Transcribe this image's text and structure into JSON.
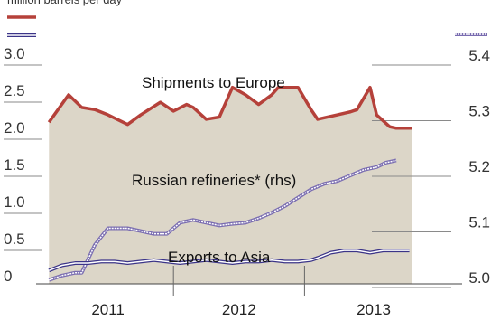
{
  "header": {
    "units": "million barrels per day"
  },
  "colors": {
    "europe": "#b5413a",
    "refineries": "#7a6db0",
    "asia": "#3b3488",
    "fill": "#dcd6c8",
    "grid": "#8a8a8a"
  },
  "chart_data": {
    "type": "area",
    "title": "",
    "ylabel": "million barrels per day",
    "ylim_left": [
      0,
      3.0
    ],
    "ylim_right": [
      5.0,
      5.4
    ],
    "left_ticks": [
      "0",
      "0.5",
      "1.0",
      "1.5",
      "2.0",
      "2.5",
      "3.0"
    ],
    "right_ticks": [
      "5.0",
      "5.1",
      "5.2",
      "5.3",
      "5.4"
    ],
    "years": [
      "2011",
      "2012",
      "2013"
    ],
    "grid": true,
    "series": [
      {
        "key": "europe",
        "style": "area-line",
        "axis": "left",
        "x": [
          2010.55,
          2010.7,
          2010.8,
          2010.9,
          2011.0,
          2011.15,
          2011.25,
          2011.4,
          2011.5,
          2011.6,
          2011.65,
          2011.75,
          2011.85,
          2011.95,
          2012.05,
          2012.15,
          2012.25,
          2012.3,
          2012.45,
          2012.55,
          2012.6,
          2012.75,
          2012.85,
          2012.9,
          2013.0,
          2013.05,
          2013.15,
          2013.2,
          2013.25,
          2013.32
        ],
        "y": [
          2.18,
          2.55,
          2.38,
          2.35,
          2.28,
          2.15,
          2.28,
          2.45,
          2.33,
          2.42,
          2.38,
          2.22,
          2.25,
          2.65,
          2.55,
          2.42,
          2.55,
          2.65,
          2.65,
          2.35,
          2.22,
          2.28,
          2.32,
          2.35,
          2.65,
          2.28,
          2.12,
          2.1,
          2.1,
          2.1
        ]
      },
      {
        "key": "refineries",
        "style": "hollow-line",
        "axis": "right",
        "x": [
          2010.55,
          2010.65,
          2010.75,
          2010.8,
          2010.9,
          2011.0,
          2011.15,
          2011.25,
          2011.35,
          2011.45,
          2011.55,
          2011.65,
          2011.75,
          2011.85,
          2011.95,
          2012.05,
          2012.15,
          2012.25,
          2012.35,
          2012.45,
          2012.55,
          2012.65,
          2012.75,
          2012.85,
          2012.95,
          2013.05,
          2013.12,
          2013.2
        ],
        "y": [
          5.007,
          5.015,
          5.02,
          5.02,
          5.07,
          5.1,
          5.1,
          5.095,
          5.09,
          5.09,
          5.11,
          5.115,
          5.11,
          5.105,
          5.108,
          5.11,
          5.118,
          5.128,
          5.14,
          5.155,
          5.17,
          5.18,
          5.185,
          5.195,
          5.205,
          5.21,
          5.218,
          5.222
        ]
      },
      {
        "key": "asia",
        "style": "hollow-line",
        "axis": "left",
        "x": [
          2010.55,
          2010.65,
          2010.75,
          2010.85,
          2010.95,
          2011.05,
          2011.15,
          2011.25,
          2011.35,
          2011.45,
          2011.55,
          2011.65,
          2011.75,
          2011.85,
          2011.95,
          2012.05,
          2012.15,
          2012.25,
          2012.35,
          2012.45,
          2012.55,
          2012.6,
          2012.7,
          2012.8,
          2012.9,
          2013.0,
          2013.1,
          2013.2,
          2013.3
        ],
        "y": [
          0.18,
          0.25,
          0.28,
          0.28,
          0.3,
          0.3,
          0.28,
          0.3,
          0.32,
          0.3,
          0.28,
          0.3,
          0.32,
          0.3,
          0.28,
          0.3,
          0.3,
          0.32,
          0.3,
          0.3,
          0.32,
          0.35,
          0.42,
          0.45,
          0.45,
          0.42,
          0.45,
          0.45,
          0.45
        ]
      }
    ],
    "annotations": [
      {
        "text": "Shipments to Europe",
        "series": "europe"
      },
      {
        "text": "Russian refineries* (rhs)",
        "series": "refineries"
      },
      {
        "text": "Exports to Asia",
        "series": "asia"
      }
    ]
  }
}
